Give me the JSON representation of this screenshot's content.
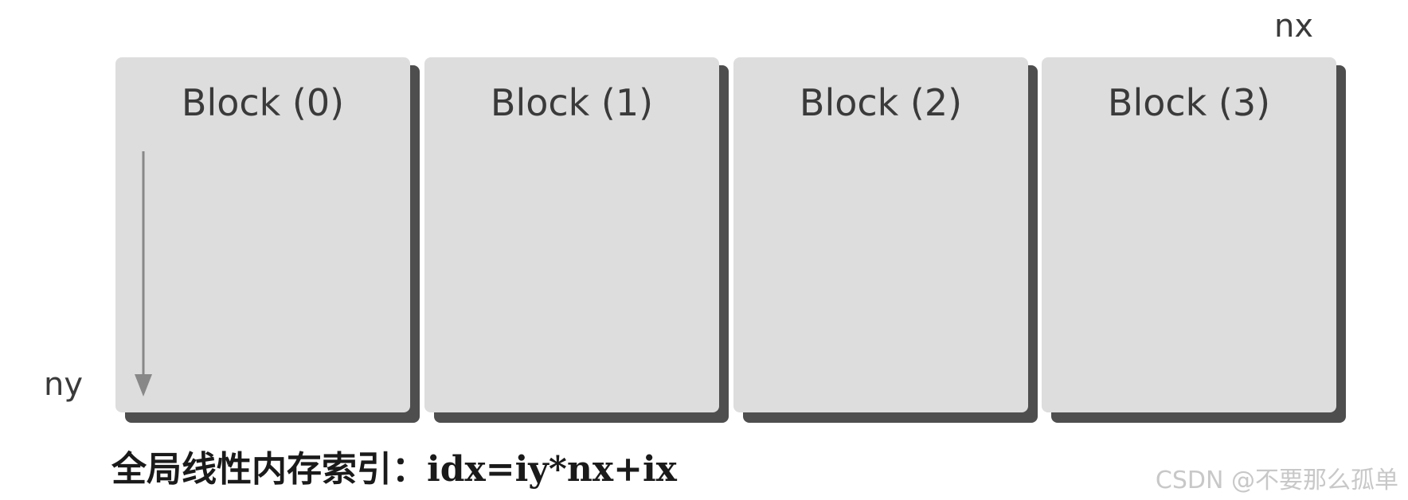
{
  "axes": {
    "nx_label": "nx",
    "ny_label": "ny"
  },
  "blocks": [
    {
      "label": "Block (0)"
    },
    {
      "label": "Block (1)"
    },
    {
      "label": "Block (2)"
    },
    {
      "label": "Block (3)"
    }
  ],
  "caption": "全局线性内存索引：idx=iy*nx+ix",
  "watermark": "CSDN @不要那么孤单",
  "colors": {
    "block_fill": "#dddddd",
    "block_shadow": "#4e4e4e",
    "arrow": "#888888",
    "text": "#3a3a3a"
  }
}
